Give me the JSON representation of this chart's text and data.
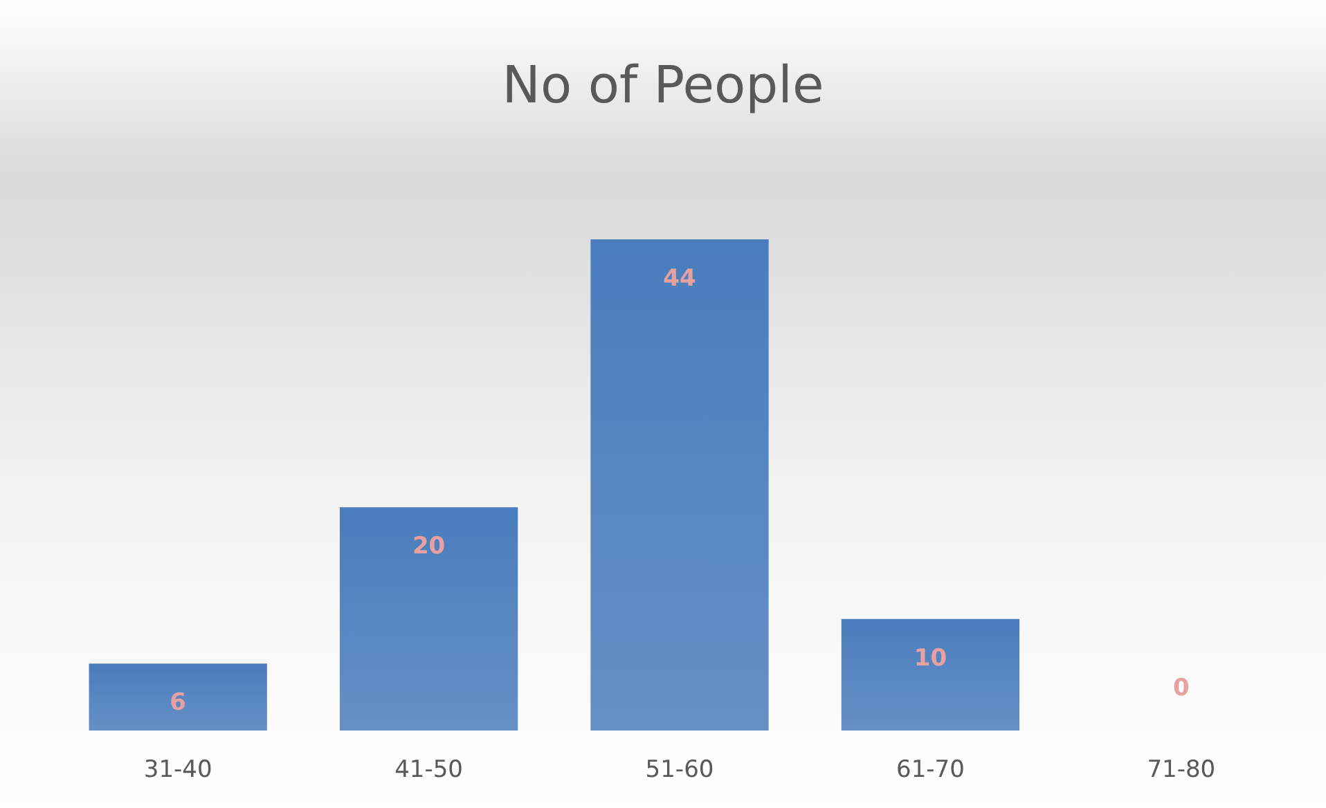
{
  "chart_data": {
    "type": "bar",
    "title": "No of People",
    "categories": [
      "31-40",
      "41-50",
      "51-60",
      "61-70",
      "71-80"
    ],
    "values": [
      6,
      20,
      44,
      10,
      0
    ],
    "color": "#4a7dbd",
    "data_labels": true
  }
}
